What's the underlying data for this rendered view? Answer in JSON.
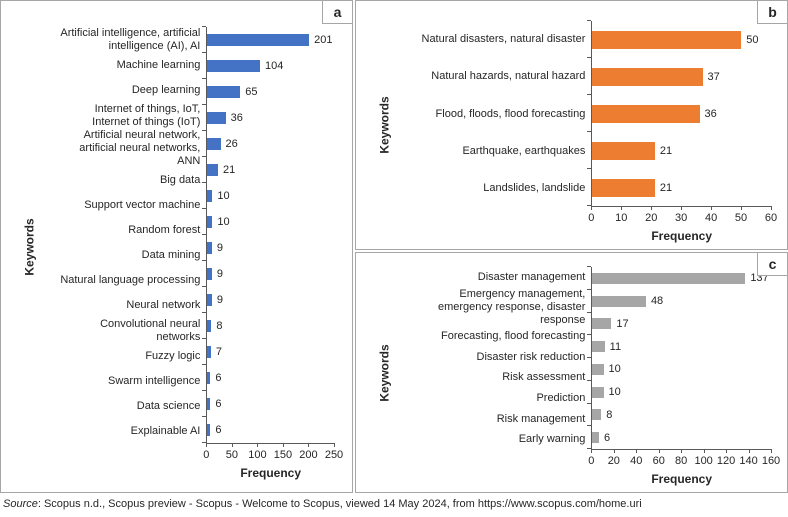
{
  "figure": {
    "footer": {
      "source_label": "Source",
      "rest": ": Scopus n.d., Scopus preview - Scopus - Welcome to Scopus, viewed 14 May 2024, from https://www.scopus.com/home.uri"
    }
  },
  "chart_data": [
    {
      "type": "bar",
      "orientation": "horizontal",
      "panel_label": "a",
      "bar_color": "#4472C4",
      "xlabel": "Frequency",
      "ylabel": "Keywords",
      "xlim": [
        0,
        250
      ],
      "xticks": [
        0,
        50,
        100,
        150,
        200,
        250
      ],
      "grid": false,
      "legend": "none",
      "categories": [
        "Artificial intelligence, artificial intelligence (AI), AI",
        "Machine learning",
        "Deep learning",
        "Internet of things, IoT, Internet of things (IoT)",
        "Artificial neural network, artificial neural networks, ANN",
        "Big data",
        "Support vector machine",
        "Random forest",
        "Data mining",
        "Natural language processing",
        "Neural network",
        "Convolutional neural networks",
        "Fuzzy logic",
        "Swarm intelligence",
        "Data science",
        "Explainable AI"
      ],
      "values": [
        201,
        104,
        65,
        36,
        26,
        21,
        10,
        10,
        9,
        9,
        9,
        8,
        7,
        6,
        6,
        6
      ]
    },
    {
      "type": "bar",
      "orientation": "horizontal",
      "panel_label": "b",
      "bar_color": "#ED7D31",
      "xlabel": "Frequency",
      "ylabel": "Keywords",
      "xlim": [
        0,
        60
      ],
      "xticks": [
        0,
        10,
        20,
        30,
        40,
        50,
        60
      ],
      "grid": false,
      "legend": "none",
      "categories": [
        "Natural disasters, natural disaster",
        "Natural hazards, natural hazard",
        "Flood, floods, flood forecasting",
        "Earthquake, earthquakes",
        "Landslides, landslide"
      ],
      "values": [
        50,
        37,
        36,
        21,
        21
      ]
    },
    {
      "type": "bar",
      "orientation": "horizontal",
      "panel_label": "c",
      "bar_color": "#A6A6A6",
      "xlabel": "Frequency",
      "ylabel": "Keywords",
      "xlim": [
        0,
        160
      ],
      "xticks": [
        0,
        20,
        40,
        60,
        80,
        100,
        120,
        140,
        160
      ],
      "grid": false,
      "legend": "none",
      "categories": [
        "Disaster management",
        "Emergency management, emergency response, disaster response",
        "Forecasting, flood forecasting",
        "Disaster risk reduction",
        "Risk assessment",
        "Prediction",
        "Risk management",
        "Early warning"
      ],
      "values": [
        137,
        48,
        17,
        11,
        10,
        10,
        8,
        6
      ]
    }
  ]
}
